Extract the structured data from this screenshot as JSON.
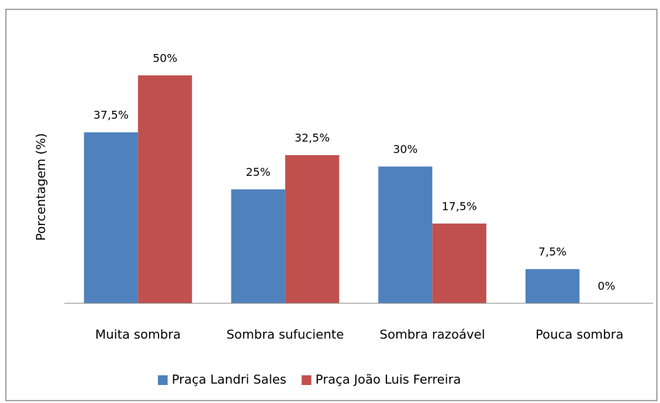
{
  "chart_data": {
    "type": "bar",
    "ylabel": "Porcentagem (%)",
    "categories": [
      "Muita sombra",
      "Sombra sufuciente",
      "Sombra razoável",
      "Pouca sombra"
    ],
    "series": [
      {
        "name": "Praça Landri Sales",
        "color": "#4f81bd",
        "values": [
          37.5,
          25,
          30,
          7.5
        ],
        "value_labels": [
          "37,5%",
          "25%",
          "30%",
          "7,5%"
        ]
      },
      {
        "name": "Praça João Luis Ferreira",
        "color": "#c0504d",
        "values": [
          50,
          32.5,
          17.5,
          0
        ],
        "value_labels": [
          "50%",
          "32,5%",
          "17,5%",
          "0%"
        ]
      }
    ],
    "ylim": [
      0,
      60
    ],
    "legend": "bottom"
  }
}
